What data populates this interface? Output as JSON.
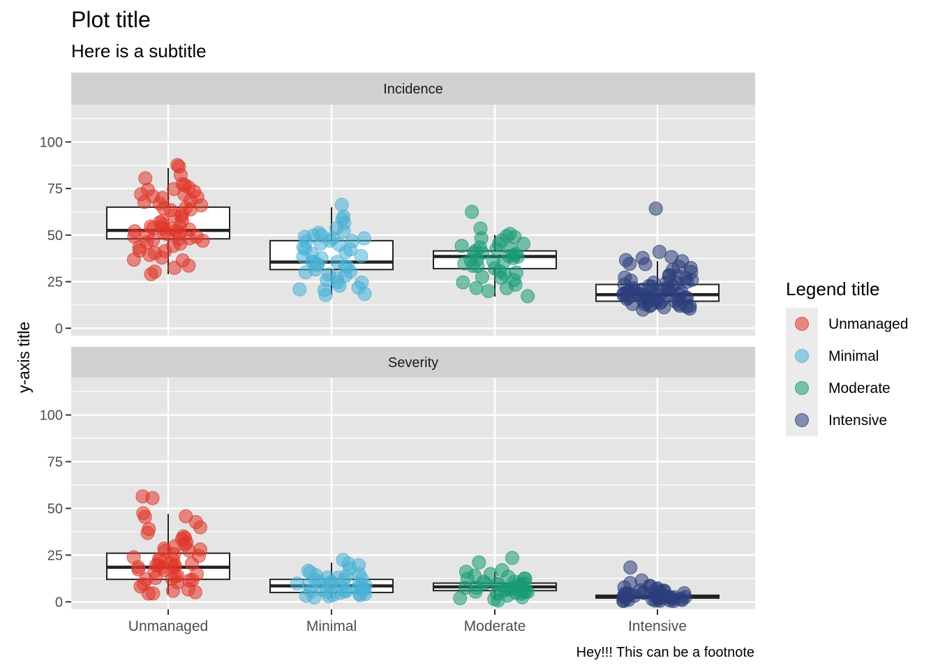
{
  "chart_data": {
    "type": "box_jitter",
    "title": "Plot title",
    "subtitle": "Here is a subtitle",
    "caption": "Hey!!! This can be a footnote",
    "ylabel": "y-axis title",
    "xlabel": "",
    "categories": [
      "Unmanaged",
      "Minimal",
      "Moderate",
      "Intensive"
    ],
    "ylim": [
      -4,
      120
    ],
    "yticks": [
      0,
      25,
      50,
      75,
      100
    ],
    "grid": true,
    "legend": {
      "title": "Legend title",
      "position": "right",
      "entries": [
        "Unmanaged",
        "Minimal",
        "Moderate",
        "Intensive"
      ]
    },
    "colors": {
      "Unmanaged": "#E0362A",
      "Minimal": "#49B0D6",
      "Moderate": "#1A9B75",
      "Intensive": "#2C3E7B",
      "panel_bg": "#E5E5E5",
      "strip_bg": "#D1D1D1",
      "grid": "#FFFFFF"
    },
    "facets": [
      {
        "label": "Incidence",
        "boxes": [
          {
            "category": "Unmanaged",
            "whisker_low": 29,
            "q1": 48,
            "median": 52.5,
            "q3": 65,
            "whisker_high": 86
          },
          {
            "category": "Minimal",
            "whisker_low": 18,
            "q1": 31.5,
            "median": 35.5,
            "q3": 47,
            "whisker_high": 65
          },
          {
            "category": "Moderate",
            "whisker_low": 17,
            "q1": 32,
            "median": 38.5,
            "q3": 41.5,
            "whisker_high": 50
          },
          {
            "category": "Intensive",
            "whisker_low": 10,
            "q1": 14.5,
            "median": 18,
            "q3": 23.5,
            "whisker_high": 36
          }
        ],
        "points": {
          "Unmanaged": [
            87,
            87,
            82,
            80,
            77,
            77,
            76,
            75,
            74,
            73,
            72,
            72,
            71,
            70,
            70,
            69,
            68,
            67,
            66,
            65,
            64,
            64,
            63,
            62,
            61,
            60,
            58,
            57,
            57,
            56,
            55,
            55,
            54,
            54,
            53,
            53,
            52,
            52,
            51,
            51,
            50,
            50,
            49,
            49,
            48,
            48,
            47,
            47,
            46,
            45,
            44,
            43,
            42,
            41,
            40,
            39,
            38,
            37,
            36,
            33,
            32,
            31,
            29
          ],
          "Minimal": [
            66,
            60,
            58,
            57,
            54,
            52,
            51,
            50,
            50,
            49,
            48,
            48,
            47,
            47,
            46,
            46,
            45,
            44,
            43,
            42,
            41,
            40,
            39,
            38,
            37,
            36,
            35,
            35,
            34,
            34,
            33,
            33,
            32,
            31,
            30,
            29,
            28,
            27,
            26,
            25,
            24,
            23,
            22,
            21,
            20,
            19,
            18
          ],
          "Moderate": [
            62,
            53,
            50,
            49,
            49,
            48,
            47,
            46,
            45,
            44,
            43,
            42,
            42,
            41,
            41,
            40,
            40,
            39,
            39,
            38,
            38,
            37,
            37,
            36,
            35,
            35,
            34,
            33,
            32,
            31,
            30,
            29,
            28,
            27,
            26,
            24,
            23,
            22,
            21,
            20,
            17
          ],
          "Intensive": [
            64,
            41,
            38,
            38,
            37,
            36,
            35,
            34,
            33,
            32,
            31,
            30,
            29,
            28,
            28,
            27,
            27,
            26,
            26,
            25,
            25,
            24,
            24,
            23,
            23,
            23,
            22,
            22,
            22,
            21,
            21,
            21,
            20,
            20,
            20,
            20,
            19,
            19,
            19,
            19,
            18,
            18,
            18,
            18,
            18,
            17,
            17,
            17,
            17,
            16,
            16,
            16,
            16,
            15,
            15,
            15,
            15,
            14,
            14,
            14,
            14,
            13,
            13,
            13,
            12,
            12,
            12,
            12,
            11,
            11,
            11,
            10
          ]
        }
      },
      {
        "label": "Severity",
        "boxes": [
          {
            "category": "Unmanaged",
            "whisker_low": 4,
            "q1": 12,
            "median": 18.5,
            "q3": 26,
            "whisker_high": 47
          },
          {
            "category": "Minimal",
            "whisker_low": 2,
            "q1": 5,
            "median": 8.5,
            "q3": 12,
            "whisker_high": 21
          },
          {
            "category": "Moderate",
            "whisker_low": 1,
            "q1": 6,
            "median": 8,
            "q3": 10,
            "whisker_high": 16
          },
          {
            "category": "Intensive",
            "whisker_low": 1,
            "q1": 2,
            "median": 3,
            "q3": 3.5,
            "whisker_high": 6
          }
        ],
        "points": {
          "Unmanaged": [
            56,
            56,
            47,
            46,
            46,
            43,
            40,
            39,
            37,
            35,
            34,
            33,
            32,
            31,
            30,
            29,
            28,
            27,
            27,
            26,
            25,
            24,
            23,
            23,
            22,
            21,
            21,
            20,
            20,
            19,
            19,
            18,
            18,
            17,
            17,
            16,
            15,
            14,
            14,
            13,
            13,
            12,
            12,
            11,
            10,
            9,
            8,
            7,
            6,
            5,
            4,
            4
          ],
          "Minimal": [
            22,
            21,
            19,
            18,
            17,
            16,
            15,
            14,
            14,
            13,
            13,
            12,
            12,
            11,
            11,
            10,
            10,
            10,
            9,
            9,
            9,
            8,
            8,
            8,
            7,
            7,
            7,
            6,
            6,
            6,
            5,
            5,
            5,
            4,
            4,
            4,
            3,
            3,
            3,
            2
          ],
          "Moderate": [
            24,
            21,
            17,
            16,
            15,
            14,
            13,
            13,
            12,
            12,
            11,
            11,
            10,
            10,
            10,
            9,
            9,
            9,
            8,
            8,
            8,
            8,
            7,
            7,
            7,
            6,
            6,
            6,
            5,
            5,
            5,
            4,
            4,
            3,
            3,
            2,
            2,
            1
          ],
          "Intensive": [
            18,
            11,
            10,
            9,
            8,
            8,
            7,
            7,
            6,
            6,
            6,
            5,
            5,
            5,
            5,
            4,
            4,
            4,
            4,
            4,
            3,
            3,
            3,
            3,
            3,
            3,
            3,
            2,
            2,
            2,
            2,
            2,
            2,
            2,
            2,
            1,
            1,
            1,
            1,
            1,
            1,
            1,
            1,
            1
          ]
        }
      }
    ]
  }
}
